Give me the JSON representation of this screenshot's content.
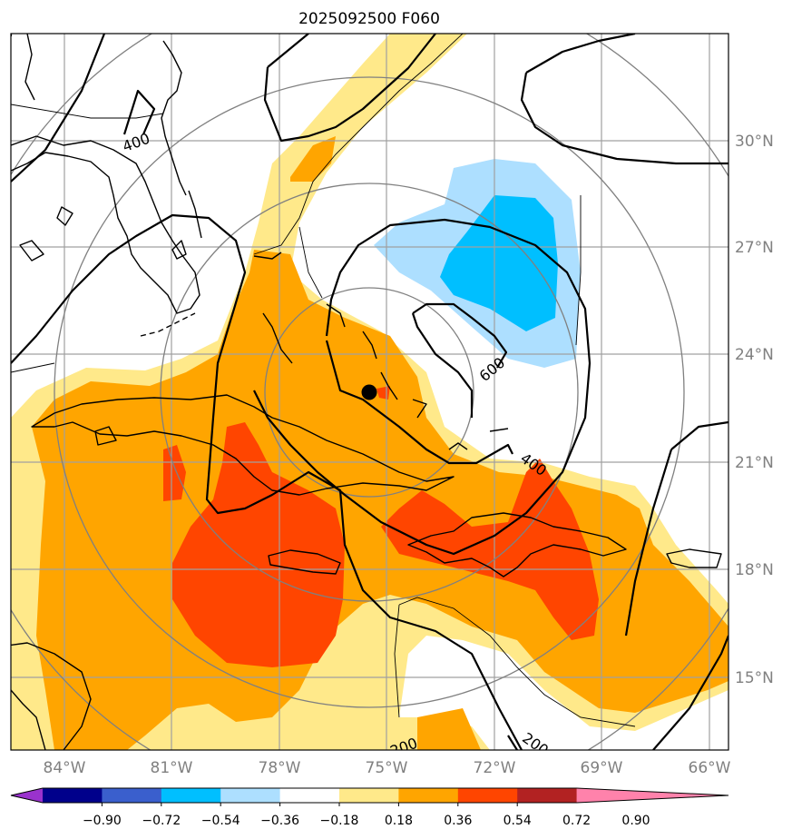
{
  "title": "2025092500 F060",
  "map": {
    "lon_labels": [
      "84°W",
      "81°W",
      "78°W",
      "75°W",
      "72°W",
      "69°W",
      "66°W"
    ],
    "lat_labels": [
      "30°N",
      "27°N",
      "24°N",
      "21°N",
      "18°N",
      "15°N"
    ],
    "contour_labels": [
      "400",
      "600",
      "400",
      "200",
      "200"
    ],
    "center_marker": "filled-circle",
    "colors": {
      "pale_yellow": "#ffe98a",
      "orange": "#ffa500",
      "red_orange": "#ff4500",
      "light_blue": "#addfff",
      "deep_sky_blue": "#00bfff",
      "grid": "#a0a0a0",
      "range_ring": "#808080"
    }
  },
  "colorbar": {
    "tick_labels": [
      "−0.90",
      "−0.72",
      "−0.54",
      "−0.36",
      "−0.18",
      "0.18",
      "0.36",
      "0.54",
      "0.72",
      "0.90"
    ],
    "colors": [
      "#9a32cd",
      "#00008b",
      "#3a5fcd",
      "#00bfff",
      "#addfff",
      "#ffffff",
      "#ffe98a",
      "#ffa500",
      "#ff4500",
      "#b22222",
      "#ff82ab"
    ]
  }
}
